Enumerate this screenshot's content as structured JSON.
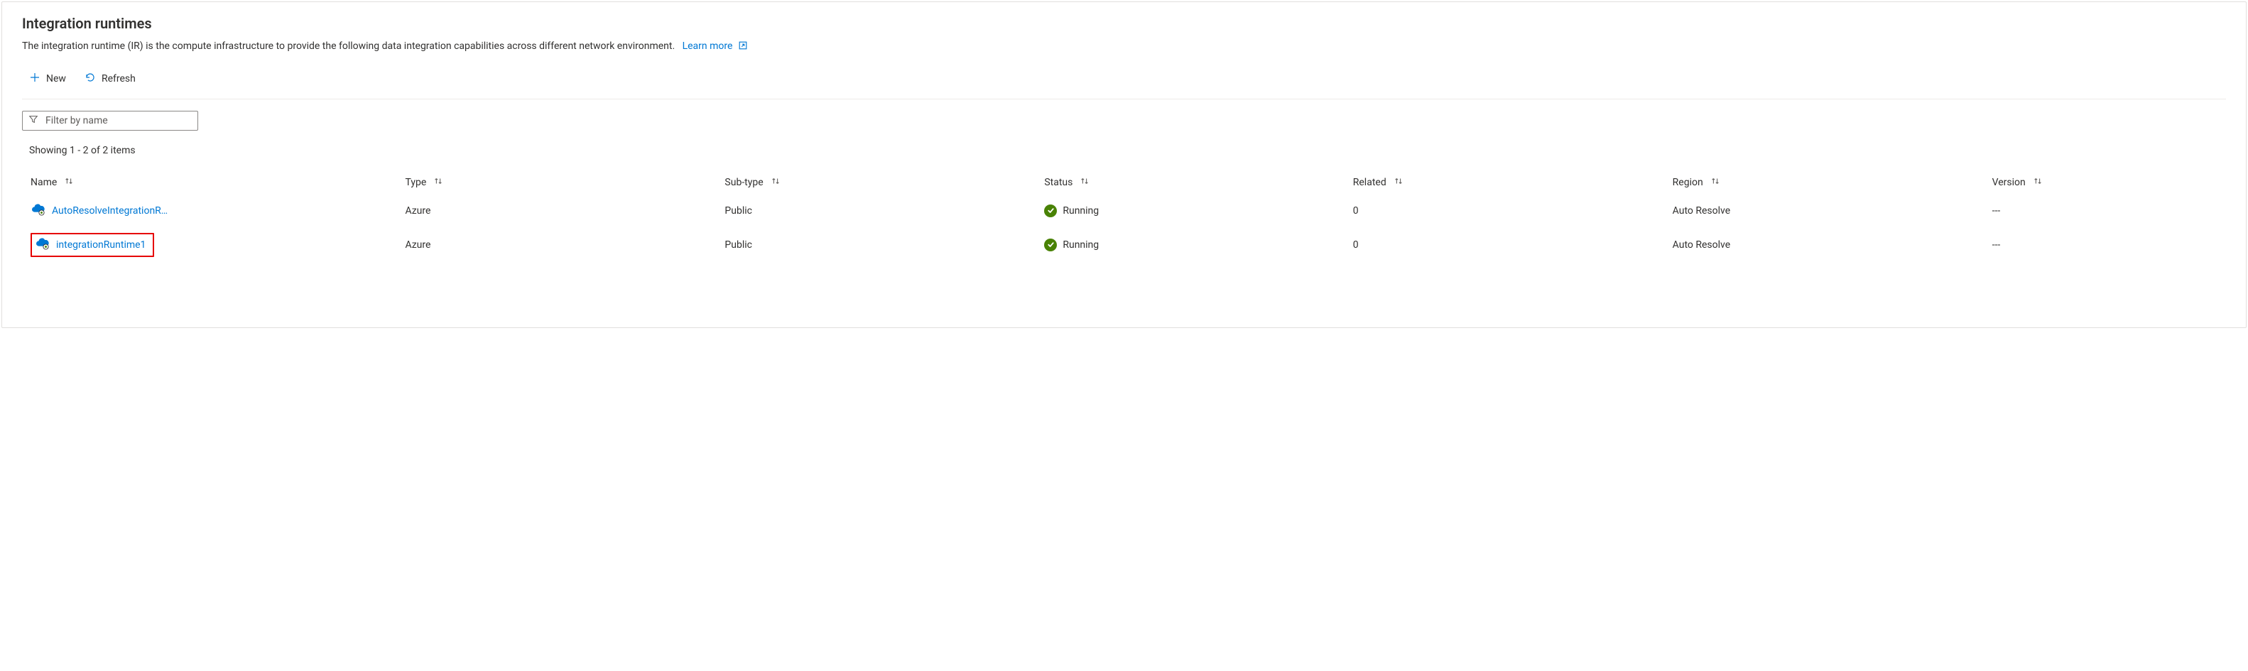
{
  "colors": {
    "accent": "#0078d4",
    "text": "#323130",
    "muted": "#605e5c",
    "border": "#e1dfdd",
    "divider": "#edebe9",
    "highlight_border": "#e60000",
    "status_running_bg": "#498205",
    "status_check": "#ffffff",
    "cloud_fill": "#0078d4",
    "cloud_badge_fill": "#ffffff",
    "cloud_badge_stroke": "#323130",
    "cloud_badge_inner": "#498205"
  },
  "header": {
    "title": "Integration runtimes",
    "description": "The integration runtime (IR) is the compute infrastructure to provide the following data integration capabilities across different network environment.",
    "learn_more_label": "Learn more"
  },
  "toolbar": {
    "new_label": "New",
    "refresh_label": "Refresh"
  },
  "filter": {
    "placeholder": "Filter by name",
    "value": ""
  },
  "count_text": "Showing 1 - 2 of 2 items",
  "columns": {
    "name": "Name",
    "type": "Type",
    "subtype": "Sub-type",
    "status": "Status",
    "related": "Related",
    "region": "Region",
    "version": "Version"
  },
  "rows": [
    {
      "name": "AutoResolveIntegrationR…",
      "type": "Azure",
      "subtype": "Public",
      "status": "Running",
      "related": "0",
      "region": "Auto Resolve",
      "version": "---",
      "highlighted": false
    },
    {
      "name": "integrationRuntime1",
      "type": "Azure",
      "subtype": "Public",
      "status": "Running",
      "related": "0",
      "region": "Auto Resolve",
      "version": "---",
      "highlighted": true
    }
  ]
}
